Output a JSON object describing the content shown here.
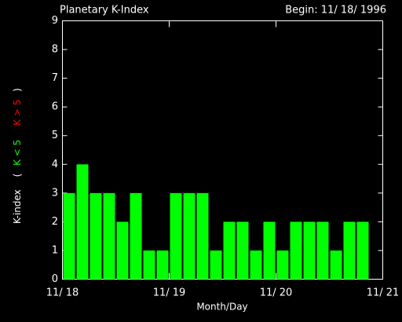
{
  "chart_data": {
    "type": "bar",
    "title": "Planetary K-Index",
    "subtitle": "Begin: 11/ 18/ 1996",
    "x_label": "Month/Day",
    "y_label": {
      "main": "K-index",
      "open": "(",
      "low": "K < 5",
      "high": "K > 5",
      "close": ")"
    },
    "x": [
      0,
      0.125,
      0.25,
      0.375,
      0.5,
      0.625,
      0.75,
      0.875,
      1,
      1.125,
      1.25,
      1.375,
      1.5,
      1.625,
      1.75,
      1.875,
      2,
      2.125,
      2.25,
      2.375,
      2.5,
      2.625,
      2.75,
      2.875
    ],
    "values": [
      3,
      4,
      3,
      3,
      2,
      3,
      1,
      1,
      3,
      3,
      3,
      1,
      2,
      2,
      1,
      2,
      1,
      2,
      2,
      2,
      1,
      2,
      2,
      null
    ],
    "color": "#00ff00",
    "low_color": "#00ff00",
    "high_color": "#ff0000",
    "xlim": [
      0,
      3
    ],
    "xticks": [
      {
        "value": 0,
        "label": "11/ 18"
      },
      {
        "value": 1,
        "label": "11/ 19"
      },
      {
        "value": 2,
        "label": "11/ 20"
      },
      {
        "value": 3,
        "label": "11/ 21"
      }
    ],
    "ylim": [
      0,
      9
    ],
    "yticks": [
      0,
      1,
      2,
      3,
      4,
      5,
      6,
      7,
      8,
      9
    ]
  }
}
